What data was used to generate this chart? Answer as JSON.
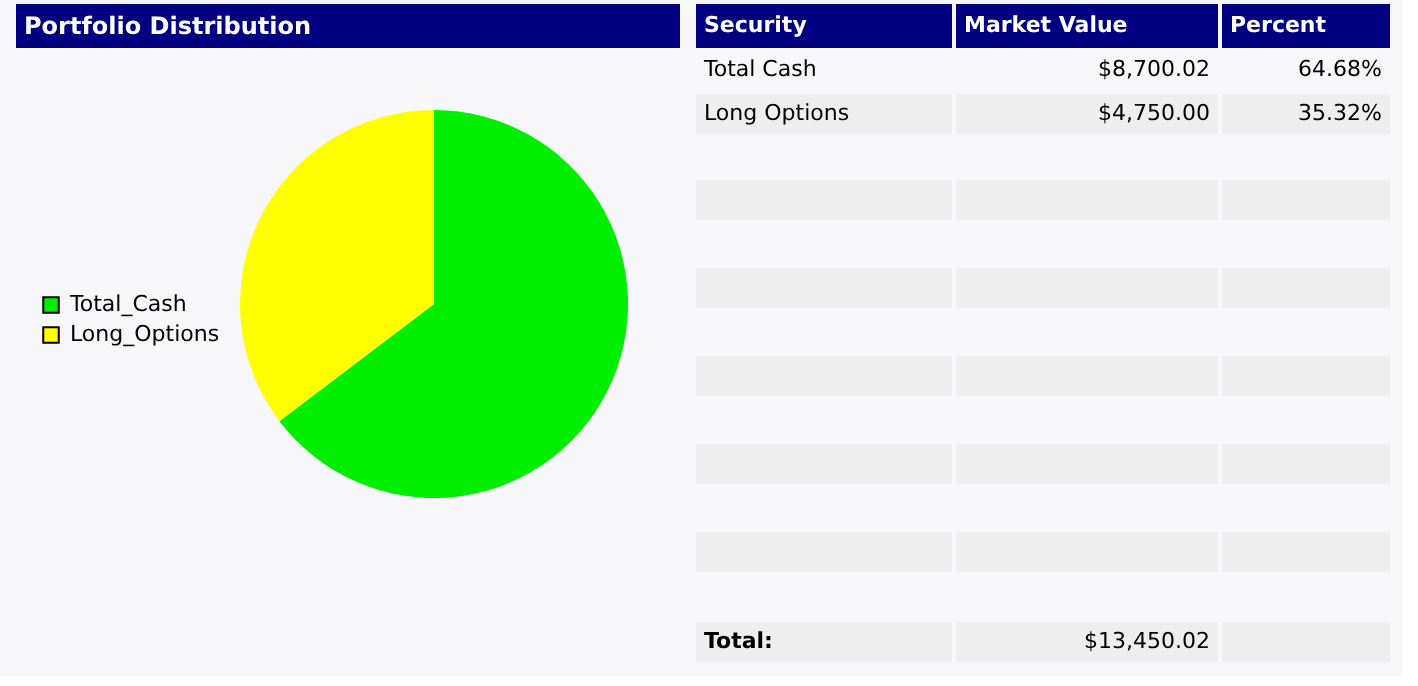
{
  "chart_data": {
    "type": "pie",
    "title": "Portfolio Distribution",
    "categories": [
      "Total_Cash",
      "Long_Options"
    ],
    "values": [
      64.68,
      35.32
    ],
    "colors": [
      "#00ee00",
      "#ffff00"
    ],
    "annotations": [
      "Security",
      "Market Value",
      "Percent",
      "Total Cash",
      "Long Options",
      "64.68%",
      "35.32%",
      "Total:",
      "$13,450.02",
      "$8,700.02",
      "$4,750.00"
    ],
    "legend": "left"
  }
}
